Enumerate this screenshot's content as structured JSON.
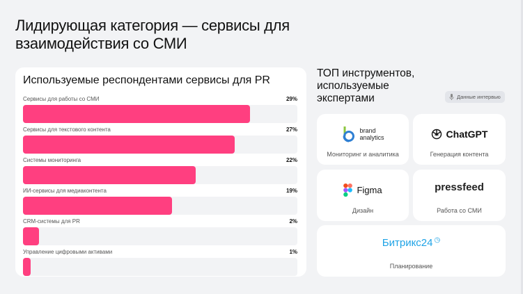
{
  "title": "Лидирующая категория — сервисы для взаимодействия со СМИ",
  "left_panel": {
    "title": "Используемые респондентами сервисы для PR"
  },
  "chart_data": {
    "type": "bar",
    "orientation": "horizontal",
    "categories": [
      "Сервисы для работы со СМИ",
      "Сервисы для текстового контента",
      "Системы мониторинга",
      "ИИ-сервисы для медиаконтента",
      "CRM-системы для PR",
      "Управление цифровыми активами"
    ],
    "values": [
      29,
      27,
      22,
      19,
      2,
      1
    ],
    "labels": [
      "29%",
      "27%",
      "22%",
      "19%",
      "2%",
      "1%"
    ],
    "unit": "%",
    "xlim": [
      0,
      35
    ],
    "color": "#ff3f80"
  },
  "right_panel": {
    "title": "ТОП инструментов, используемые экспертами",
    "badge": "Данные интервью",
    "badge_icon": "microphone-icon",
    "tools": [
      {
        "logo": "brand analytics",
        "caption": "Мониторинг и аналитика"
      },
      {
        "logo": "ChatGPT",
        "caption": "Генерация контента"
      },
      {
        "logo": "Figma",
        "caption": "Дизайн"
      },
      {
        "logo": "pressfeed",
        "caption": "Работа со СМИ"
      },
      {
        "logo": "Битрикс24",
        "caption": "Планирование"
      }
    ]
  }
}
